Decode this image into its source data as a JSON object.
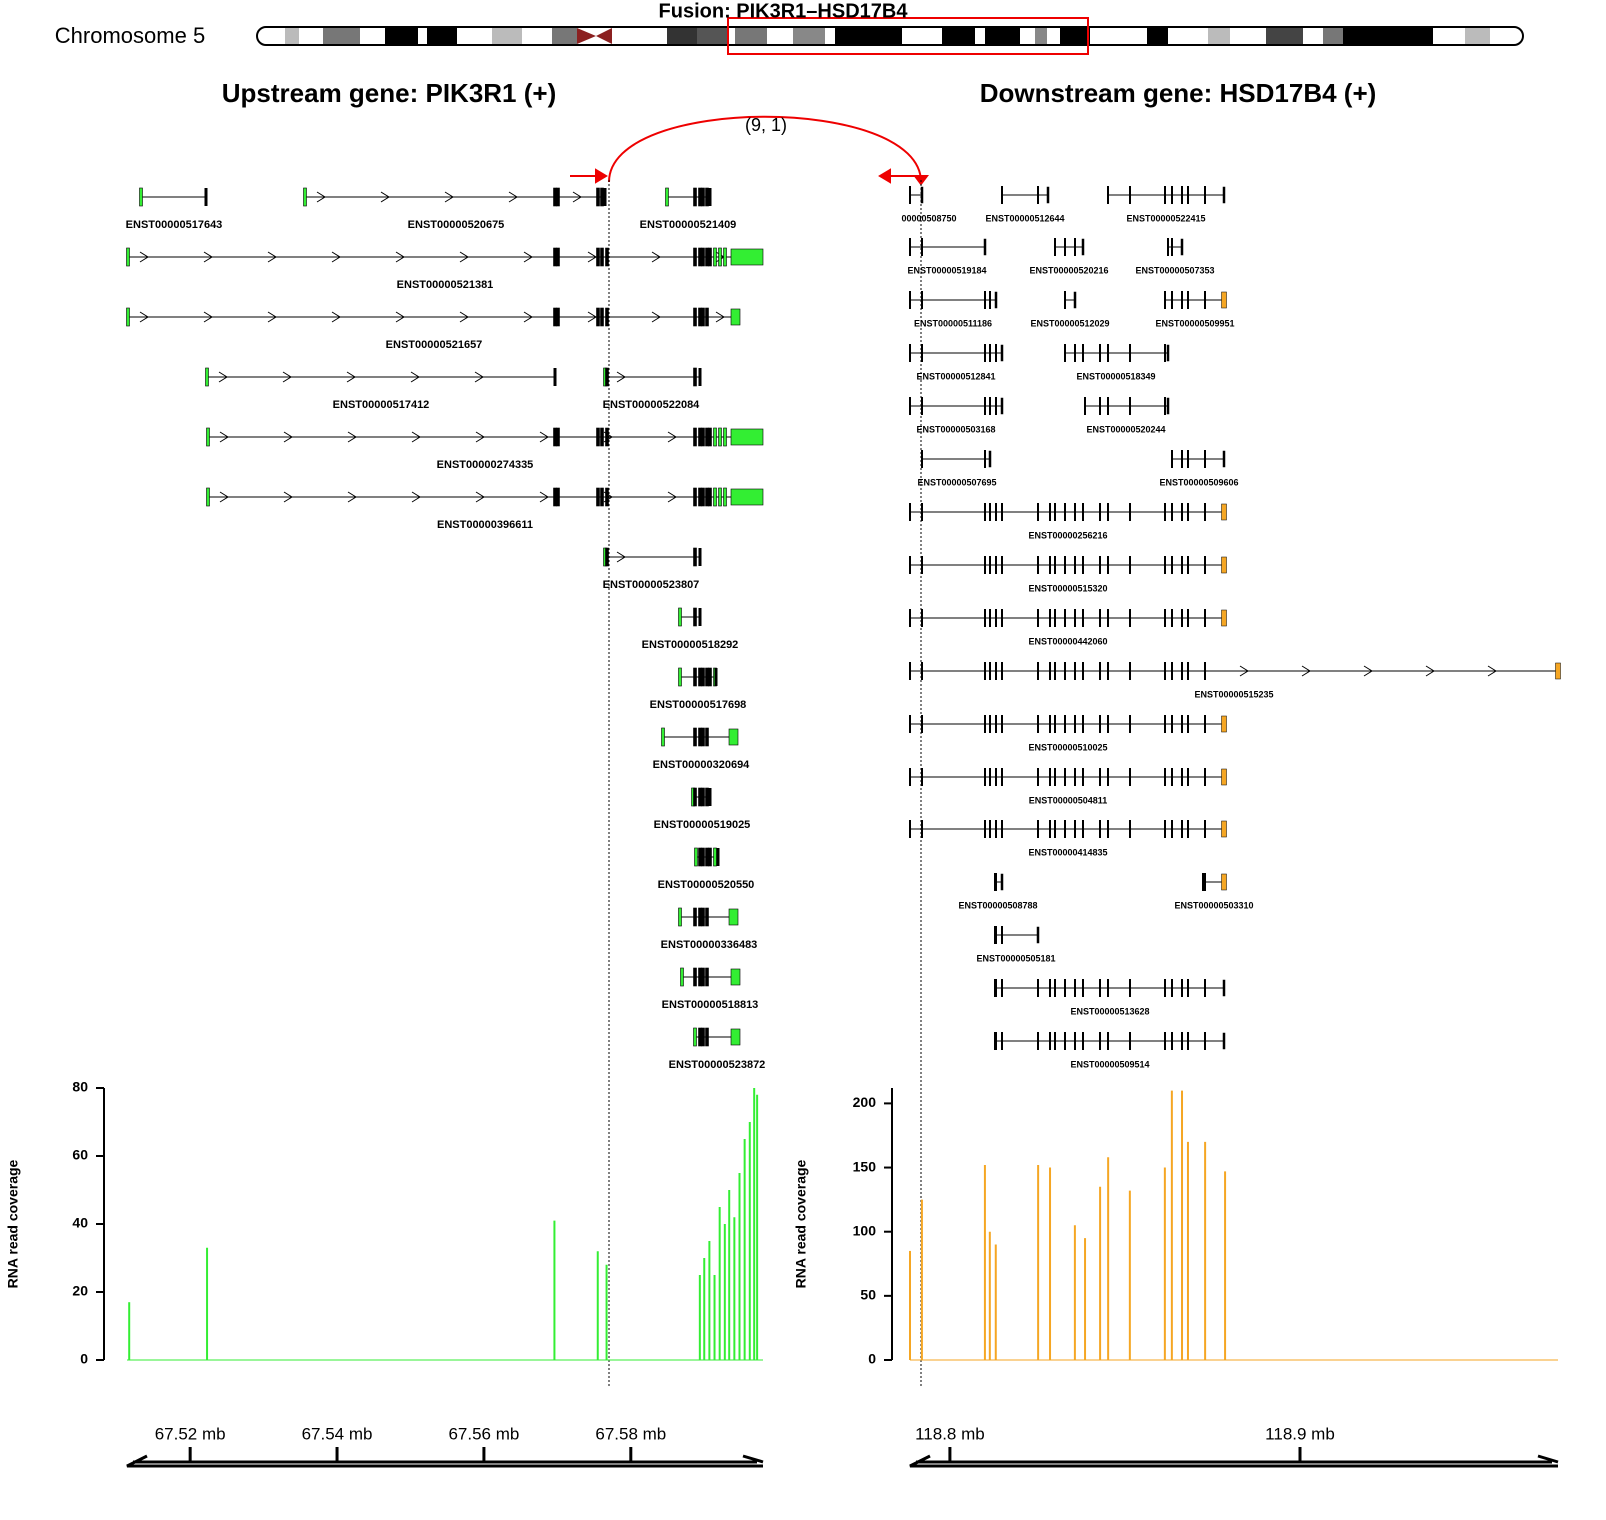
{
  "chromosome": {
    "label": "Chromosome 5"
  },
  "fusion_title": "Fusion: PIK3R1–HSD17B4",
  "supporting_reads": "(9, 1)",
  "upstream": {
    "title": "Upstream gene: PIK3R1 (+)",
    "transcripts": [
      "ENST00000517643",
      "ENST00000520675",
      "ENST00000521409",
      "ENST00000521381",
      "ENST00000521657",
      "ENST00000517412",
      "ENST00000522084",
      "ENST00000274335",
      "ENST00000396611",
      "ENST00000523807",
      "ENST00000518292",
      "ENST00000517698",
      "ENST00000320694",
      "ENST00000519025",
      "ENST00000520550",
      "ENST00000336483",
      "ENST00000518813",
      "ENST00000523872"
    ]
  },
  "downstream": {
    "title": "Downstream gene: HSD17B4 (+)",
    "transcripts": [
      "00000508750",
      "ENST00000512644",
      "ENST00000522415",
      "ENST00000519184",
      "ENST00000520216",
      "ENST00000507353",
      "ENST00000511186",
      "ENST00000512029",
      "ENST00000509951",
      "ENST00000512841",
      "ENST00000518349",
      "ENST00000503168",
      "ENST00000520244",
      "ENST00000507695",
      "ENST00000509606",
      "ENST00000256216",
      "ENST00000515320",
      "ENST00000442060",
      "ENST00000515235",
      "ENST00000510025",
      "ENST00000504811",
      "ENST00000414835",
      "ENST00000508788",
      "ENST00000503310",
      "ENST00000505181",
      "ENST00000513628",
      "ENST00000509514"
    ]
  },
  "chart_data": [
    {
      "type": "bar",
      "ylabel": "RNA read coverage",
      "color": "#33ee33",
      "x": [
        67.5117,
        67.5223,
        67.5696,
        67.5755,
        67.5767,
        67.5894,
        67.59,
        67.5907,
        67.5914,
        67.5921,
        67.5928,
        67.5934,
        67.5941,
        67.5948,
        67.5955,
        67.5962,
        67.5968,
        67.5972
      ],
      "values": [
        17,
        33,
        41,
        32,
        28,
        25,
        30,
        35,
        25,
        45,
        40,
        50,
        42,
        55,
        65,
        70,
        80,
        78
      ],
      "xlim": [
        67.5114,
        67.598
      ],
      "ylim": [
        0,
        80
      ],
      "yticks": [
        0,
        20,
        40,
        60,
        80
      ],
      "xticks": [
        {
          "value": 67.52,
          "label": "67.52 mb"
        },
        {
          "value": 67.54,
          "label": "67.54 mb"
        },
        {
          "value": 67.56,
          "label": "67.56 mb"
        },
        {
          "value": 67.58,
          "label": "67.58 mb"
        }
      ]
    },
    {
      "type": "bar",
      "ylabel": "RNA read coverage",
      "color": "#f5a623",
      "x": [
        118.7886,
        118.792,
        118.81,
        118.8114,
        118.8131,
        118.8252,
        118.8286,
        118.8357,
        118.8386,
        118.8429,
        118.8452,
        118.8514,
        118.8614,
        118.8634,
        118.8663,
        118.868,
        118.8729,
        118.8786
      ],
      "values": [
        85,
        125,
        152,
        100,
        90,
        152,
        150,
        105,
        95,
        135,
        158,
        132,
        150,
        210,
        210,
        170,
        170,
        147
      ],
      "xlim": [
        118.7886,
        118.9737
      ],
      "ylim": [
        0,
        212
      ],
      "yticks": [
        0,
        50,
        100,
        150,
        200
      ],
      "xticks": [
        {
          "value": 118.8,
          "label": "118.8 mb"
        },
        {
          "value": 118.9,
          "label": "118.9 mb"
        }
      ]
    }
  ]
}
